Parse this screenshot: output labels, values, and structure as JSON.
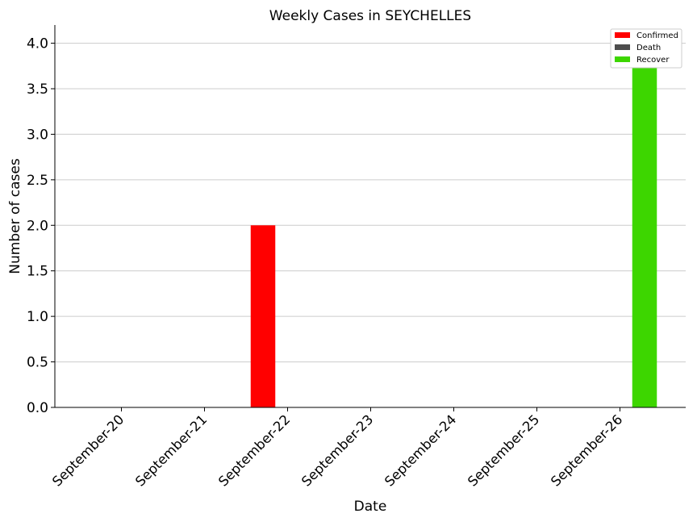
{
  "chart_data": {
    "type": "bar",
    "title": "Weekly Cases in SEYCHELLES",
    "xlabel": "Date",
    "ylabel": "Number of cases",
    "categories": [
      "September-20",
      "September-21",
      "September-22",
      "September-23",
      "September-24",
      "September-25",
      "September-26"
    ],
    "series": [
      {
        "name": "Confirmed",
        "color": "#ff0000",
        "values": [
          0,
          0,
          2,
          0,
          0,
          0,
          0
        ]
      },
      {
        "name": "Death",
        "color": "#4d4d4d",
        "values": [
          0,
          0,
          0,
          0,
          0,
          0,
          0
        ]
      },
      {
        "name": "Recover",
        "color": "#3dd600",
        "values": [
          0,
          0,
          0,
          0,
          0,
          0,
          4
        ]
      }
    ],
    "ylim": [
      0,
      4.2
    ],
    "yticks": [
      "0.0",
      "0.5",
      "1.0",
      "1.5",
      "2.0",
      "2.5",
      "3.0",
      "3.5",
      "4.0"
    ],
    "grid": "horizontal",
    "legend_position": "top-right"
  }
}
